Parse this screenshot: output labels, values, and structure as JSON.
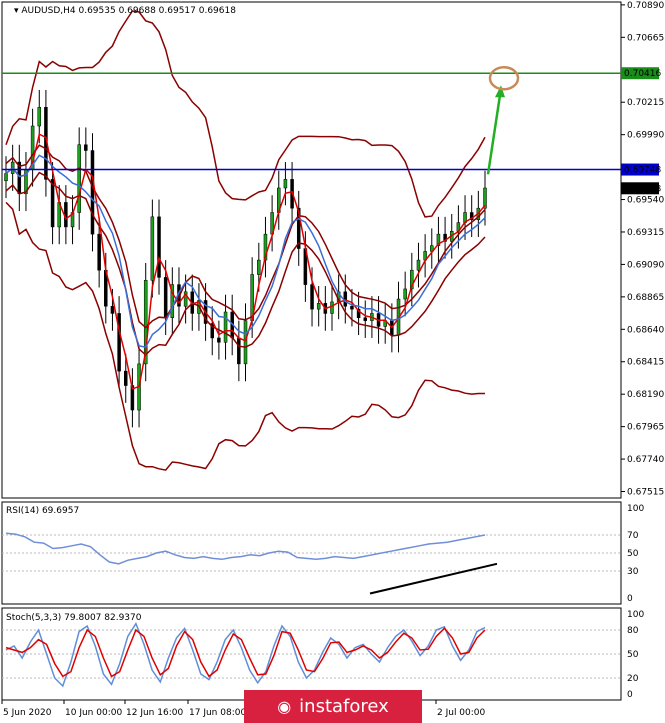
{
  "chart_data": [
    {
      "type": "candlestick",
      "symbol": "AUDUSD,H4",
      "ohlc_label": "0.69535 0.69688 0.69517 0.69618",
      "ylim": [
        0.6747,
        0.7091
      ],
      "y_ticks": [
        "0.70890",
        "0.70665",
        "0.70215",
        "0.69990",
        "0.69540",
        "0.69315",
        "0.69090",
        "0.68865",
        "0.68640",
        "0.68415",
        "0.68190",
        "0.67965",
        "0.67740",
        "0.67515"
      ],
      "x_ticks": [
        "5 Jun 2020",
        "10 Jun 00:00",
        "12 Jun 16:00",
        "17 Jun 08:00",
        "2 Jul 00:00"
      ],
      "price_labels": {
        "resistance_upper": {
          "text": "0.70416",
          "value": 0.70416,
          "color": "#1a8c1a"
        },
        "resistance_lower": {
          "text": "0.69748",
          "value": 0.69748,
          "color": "#0000cc"
        },
        "last_price": {
          "text": "0.69618",
          "value": 0.69618
        }
      },
      "close_series": [
        0.6972,
        0.698,
        0.6958,
        0.6975,
        0.7005,
        0.7018,
        0.6968,
        0.6935,
        0.6952,
        0.6935,
        0.6945,
        0.6992,
        0.6988,
        0.693,
        0.6905,
        0.688,
        0.6875,
        0.6835,
        0.6825,
        0.6808,
        0.684,
        0.6898,
        0.6942,
        0.69,
        0.6872,
        0.6895,
        0.688,
        0.689,
        0.6875,
        0.6884,
        0.6868,
        0.6858,
        0.6855,
        0.6876,
        0.6858,
        0.684,
        0.687,
        0.6902,
        0.6912,
        0.693,
        0.6945,
        0.6962,
        0.6968,
        0.6948,
        0.692,
        0.6895,
        0.6878,
        0.6882,
        0.6875,
        0.6883,
        0.689,
        0.688,
        0.6878,
        0.6872,
        0.687,
        0.6875,
        0.6866,
        0.687,
        0.686,
        0.6885,
        0.6892,
        0.6905,
        0.6912,
        0.6918,
        0.6922,
        0.693,
        0.6925,
        0.6932,
        0.6938,
        0.6945,
        0.694,
        0.6948,
        0.6962
      ]
    },
    {
      "type": "line",
      "label": "RSI(14) 69.6957",
      "ylim": [
        0,
        100
      ],
      "y_ticks": [
        "100",
        "70",
        "50",
        "30",
        "0"
      ],
      "values": [
        72,
        71,
        68,
        62,
        61,
        55,
        56,
        58,
        60,
        57,
        48,
        40,
        38,
        42,
        44,
        46,
        50,
        52,
        48,
        45,
        44,
        46,
        44,
        43,
        45,
        46,
        48,
        47,
        50,
        52,
        51,
        45,
        44,
        43,
        44,
        46,
        45,
        44,
        46,
        48,
        50,
        52,
        54,
        56,
        58,
        60,
        61,
        62,
        64,
        66,
        68,
        70
      ]
    },
    {
      "type": "line",
      "label": "Stoch(5,3,3) 79.8007 82.9370",
      "ylim": [
        0,
        100
      ],
      "y_ticks": [
        "100",
        "80",
        "50",
        "20",
        "0"
      ],
      "main": [
        55,
        60,
        45,
        65,
        80,
        50,
        20,
        10,
        40,
        78,
        85,
        60,
        25,
        12,
        38,
        72,
        88,
        62,
        30,
        15,
        45,
        70,
        82,
        55,
        25,
        18,
        40,
        68,
        80,
        58,
        30,
        14,
        28,
        60,
        85,
        72,
        40,
        20,
        30,
        52,
        70,
        62,
        45,
        58,
        62,
        50,
        40,
        58,
        72,
        80,
        66,
        48,
        60,
        80,
        84,
        60,
        42,
        55,
        78,
        83
      ],
      "signal": [
        58,
        55,
        52,
        58,
        68,
        62,
        38,
        22,
        28,
        58,
        80,
        72,
        45,
        22,
        28,
        55,
        80,
        72,
        45,
        24,
        32,
        60,
        78,
        68,
        40,
        22,
        30,
        55,
        75,
        68,
        45,
        24,
        25,
        48,
        78,
        76,
        55,
        30,
        28,
        44,
        64,
        65,
        52,
        55,
        60,
        55,
        45,
        52,
        65,
        76,
        70,
        55,
        56,
        72,
        82,
        70,
        50,
        52,
        70,
        80
      ]
    }
  ],
  "watermark": {
    "logo_text": "instaforex",
    "logo_icon": "eye-logo-icon"
  }
}
